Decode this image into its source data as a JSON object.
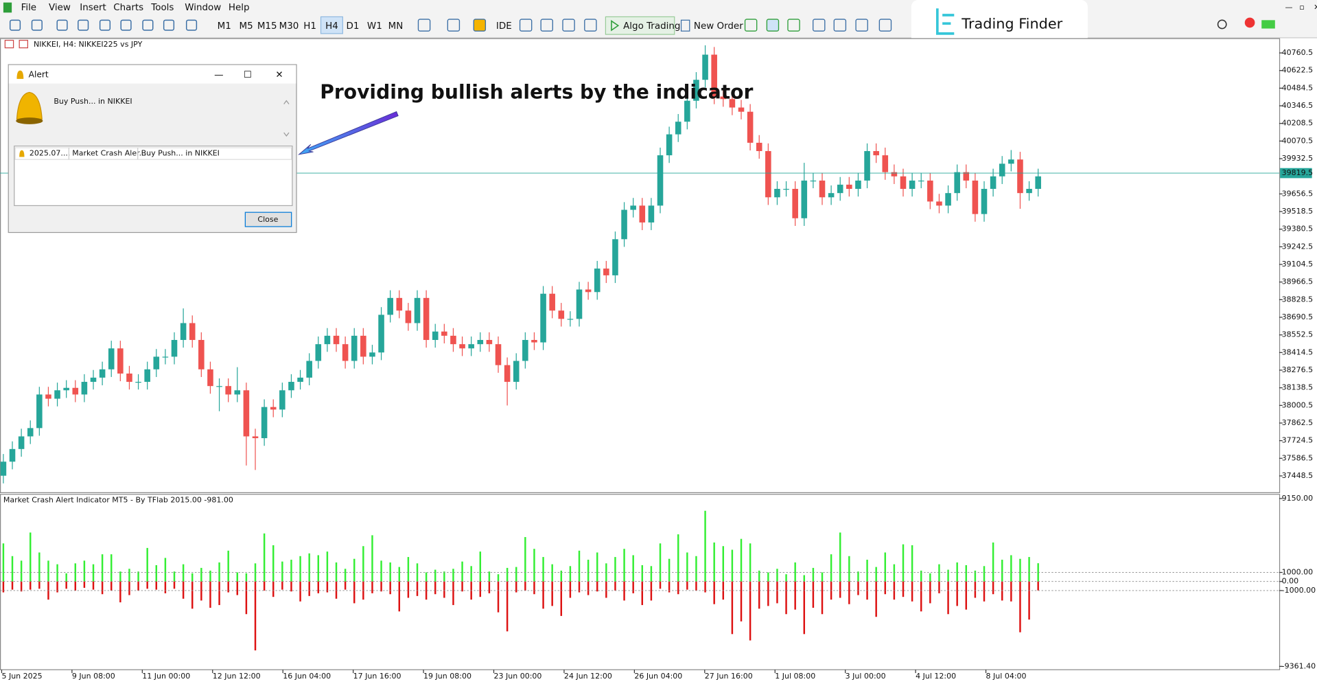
{
  "menu": [
    "File",
    "View",
    "Insert",
    "Charts",
    "Tools",
    "Window",
    "Help"
  ],
  "toolbar": {
    "timeframes": [
      "M1",
      "M5",
      "M15",
      "M30",
      "H1",
      "H4",
      "D1",
      "W1",
      "MN"
    ],
    "active": "H4",
    "ide": "IDE",
    "algo": "Algo Trading",
    "order": "New Order"
  },
  "brand": "Trading Finder",
  "annotation": "Providing bullish alerts by the indicator",
  "alert": {
    "title": "Alert",
    "message": "Buy Push... in NIKKEI",
    "row": [
      "2025.07....",
      "Market Crash Aler...",
      "Buy Push... in NIKKEI"
    ],
    "button": "Close"
  },
  "chart_data": [
    {
      "type": "candlestick",
      "title": "NIKKEI, H4: NIKKEI225 vs JPY",
      "up_color": "#26a69a",
      "down_color": "#ef5350",
      "open": [
        37450,
        37560,
        37659,
        37758,
        37823,
        38086,
        38053,
        38119,
        38138,
        38086,
        38185,
        38218,
        38283,
        38447,
        38250,
        38185,
        38185,
        38283,
        38382,
        38382,
        38513,
        38645,
        38513,
        38283,
        38152,
        38152,
        38086,
        38119,
        37758,
        37744,
        37988,
        37968,
        38119,
        38185,
        38218,
        38349,
        38480,
        38546,
        38480,
        38349,
        38546,
        38382,
        38415,
        38710,
        38842,
        38743,
        38645,
        38842,
        38513,
        38579,
        38546,
        38480,
        38447,
        38480,
        38513,
        38480,
        38316,
        38185,
        38349,
        38513,
        38494,
        38875,
        38743,
        38678,
        38678,
        38908,
        38888,
        39072,
        39019,
        39302,
        39532,
        39565,
        39433,
        39565,
        39959,
        40123,
        40222,
        40386,
        40550,
        40747,
        40419,
        40399,
        40333,
        40300,
        40057,
        39992,
        39630,
        39696,
        39696,
        39466,
        39761,
        39761,
        39630,
        39663,
        39729,
        39696,
        39761,
        39992,
        39959,
        39827,
        39794,
        39696,
        39761,
        39761,
        39597,
        39565,
        39663,
        39827,
        39761,
        39499,
        39696,
        39794,
        39893,
        39926,
        39663,
        39696
      ],
      "high": [
        37620,
        37719,
        37818,
        37883,
        38146,
        38146,
        38179,
        38198,
        38198,
        38245,
        38278,
        38343,
        38507,
        38507,
        38310,
        38245,
        38343,
        38442,
        38442,
        38573,
        38760,
        38705,
        38573,
        38343,
        38212,
        38212,
        38300,
        38179,
        37818,
        38048,
        38048,
        38179,
        38245,
        38278,
        38409,
        38540,
        38606,
        38606,
        38540,
        38606,
        38606,
        38475,
        38770,
        38902,
        38902,
        38803,
        38902,
        38902,
        38639,
        38639,
        38606,
        38540,
        38540,
        38573,
        38573,
        38540,
        38376,
        38409,
        38573,
        38573,
        38935,
        38935,
        38803,
        38738,
        38968,
        38968,
        39132,
        39132,
        39362,
        39592,
        39625,
        39625,
        39625,
        40019,
        40183,
        40282,
        40446,
        40610,
        40820,
        40807,
        40479,
        40459,
        40393,
        40360,
        40117,
        40052,
        39756,
        39756,
        39756,
        39900,
        39821,
        39821,
        39723,
        39789,
        39789,
        39821,
        40052,
        40052,
        40019,
        39887,
        39854,
        39821,
        39821,
        39821,
        39657,
        39723,
        39887,
        39887,
        39821,
        39756,
        39854,
        39953,
        40000,
        39986,
        39756,
        39854
      ],
      "low": [
        37390,
        37500,
        37599,
        37698,
        37763,
        37993,
        37993,
        38059,
        38026,
        38026,
        38125,
        38158,
        38223,
        38190,
        38125,
        38125,
        38125,
        38223,
        38322,
        38322,
        38453,
        38453,
        38223,
        38092,
        37955,
        38026,
        38026,
        37530,
        37495,
        37684,
        37908,
        37908,
        38059,
        38125,
        38158,
        38289,
        38420,
        38420,
        38289,
        38289,
        38322,
        38322,
        38355,
        38650,
        38683,
        38585,
        38585,
        38453,
        38453,
        38486,
        38420,
        38387,
        38387,
        38420,
        38420,
        38256,
        38000,
        38125,
        38289,
        38434,
        38434,
        38683,
        38618,
        38618,
        38618,
        38828,
        38828,
        38959,
        38959,
        39242,
        39472,
        39373,
        39373,
        39505,
        39899,
        40063,
        40162,
        40326,
        40490,
        40359,
        40339,
        40273,
        40240,
        39997,
        39932,
        39570,
        39570,
        39636,
        39406,
        39406,
        39701,
        39570,
        39570,
        39603,
        39636,
        39636,
        39701,
        39899,
        39767,
        39734,
        39636,
        39636,
        39701,
        39537,
        39505,
        39505,
        39603,
        39701,
        39439,
        39439,
        39636,
        39734,
        39833,
        39540,
        39603,
        39636
      ],
      "close": [
        37560,
        37659,
        37758,
        37823,
        38086,
        38053,
        38119,
        38138,
        38086,
        38185,
        38218,
        38283,
        38447,
        38250,
        38185,
        38185,
        38283,
        38382,
        38382,
        38513,
        38645,
        38513,
        38283,
        38152,
        38152,
        38086,
        38119,
        37758,
        37744,
        37988,
        37968,
        38119,
        38185,
        38218,
        38349,
        38480,
        38546,
        38480,
        38349,
        38546,
        38382,
        38415,
        38710,
        38842,
        38743,
        38645,
        38842,
        38513,
        38579,
        38546,
        38480,
        38447,
        38480,
        38513,
        38480,
        38316,
        38185,
        38349,
        38513,
        38494,
        38875,
        38743,
        38678,
        38678,
        38908,
        38888,
        39072,
        39019,
        39302,
        39532,
        39565,
        39433,
        39565,
        39959,
        40123,
        40222,
        40386,
        40550,
        40747,
        40419,
        40399,
        40333,
        40300,
        40057,
        39992,
        39630,
        39696,
        39696,
        39466,
        39761,
        39761,
        39630,
        39663,
        39729,
        39696,
        39761,
        39992,
        39959,
        39827,
        39794,
        39696,
        39761,
        39761,
        39597,
        39565,
        39663,
        39827,
        39761,
        39499,
        39696,
        39794,
        39893,
        39926,
        39663,
        39696,
        39794
      ],
      "ylim": [
        37324,
        40866
      ],
      "yticks": [
        40760.5,
        40622.5,
        40484.5,
        40346.5,
        40208.5,
        40070.5,
        39932.5,
        39656.5,
        39518.5,
        39380.5,
        39242.5,
        39104.5,
        38966.5,
        38828.5,
        38690.5,
        38552.5,
        38414.5,
        38276.5,
        38138.5,
        38000.5,
        37862.5,
        37724.5,
        37586.5,
        37448.5
      ],
      "current_price": 39819.5,
      "current_color": "#26a69a"
    },
    {
      "type": "bar",
      "title": "Market Crash Alert Indicator MT5 - By TFlab 2015.00 -981.00",
      "series": [
        {
          "color": "#33ee33",
          "values": [
            4200,
            2800,
            2300,
            5400,
            3200,
            2300,
            1900,
            900,
            2000,
            2300,
            1900,
            3000,
            3000,
            1100,
            1400,
            1100,
            3700,
            1800,
            2600,
            1100,
            1900,
            900,
            1500,
            1200,
            2100,
            3400,
            1000,
            900,
            2000,
            5300,
            4000,
            2200,
            2400,
            2800,
            3100,
            2900,
            3300,
            2100,
            1400,
            2500,
            3900,
            5100,
            2300,
            2100,
            1600,
            2700,
            2000,
            1000,
            1300,
            1100,
            1400,
            2200,
            1700,
            3300,
            1100,
            800,
            1500,
            1600,
            4900,
            3600,
            2700,
            1900,
            1200,
            1700,
            3400,
            2400,
            3200,
            2000,
            2700,
            3600,
            2900,
            1800,
            1700,
            4200,
            2500,
            5200,
            3200,
            2800,
            7800,
            4300,
            3900,
            3500,
            4700,
            4200,
            1200,
            1000,
            1400,
            800,
            2100,
            700,
            1500,
            1000,
            3000,
            5400,
            2800,
            1100,
            2400,
            1600,
            3200,
            1900,
            4100,
            4000,
            1200,
            900,
            1900,
            1300,
            2100,
            1800,
            1200,
            1700,
            4300,
            2400,
            2900,
            2500,
            2700,
            2015
          ]
        },
        {
          "color": "#dd1111",
          "values": [
            -1200,
            -900,
            -1100,
            -900,
            -800,
            -2000,
            -1200,
            -800,
            -1000,
            -700,
            -900,
            -1400,
            -1000,
            -2300,
            -1500,
            -1000,
            -800,
            -900,
            -1300,
            -800,
            -1900,
            -3000,
            -2100,
            -2900,
            -2600,
            -1200,
            -1500,
            -3600,
            -7600,
            -1000,
            -1700,
            -900,
            -1100,
            -2200,
            -1600,
            -1300,
            -1200,
            -1900,
            -900,
            -2400,
            -2000,
            -1300,
            -1100,
            -1400,
            -3300,
            -1800,
            -1600,
            -2000,
            -1400,
            -1800,
            -2600,
            -1100,
            -2000,
            -1700,
            -1300,
            -3400,
            -5500,
            -1200,
            -1000,
            -1400,
            -3000,
            -2700,
            -3800,
            -1800,
            -1200,
            -1500,
            -1100,
            -1800,
            -1000,
            -2100,
            -1300,
            -2600,
            -2100,
            -800,
            -1200,
            -1400,
            -900,
            -1000,
            -1200,
            -2500,
            -2000,
            -5800,
            -4400,
            -6500,
            -3000,
            -2700,
            -2400,
            -3600,
            -3100,
            -5800,
            -2900,
            -3600,
            -2000,
            -1800,
            -2500,
            -1500,
            -2000,
            -3900,
            -1400,
            -2000,
            -1700,
            -2200,
            -3300,
            -2400,
            -1300,
            -3600,
            -2700,
            -3100,
            -1800,
            -2200,
            -1400,
            -2100,
            -2200,
            -5600,
            -4200,
            -981
          ]
        }
      ],
      "ylim": [
        -9361.4,
        9150
      ],
      "yticks": [
        {
          "value": 9150,
          "label": "9150.00"
        },
        {
          "value": 1000,
          "label": "1000.00"
        },
        {
          "value": 0,
          "label": "0.00"
        },
        {
          "value": -1000,
          "label": "-1000.00"
        },
        {
          "value": -9361.4,
          "label": "-9361.40"
        }
      ],
      "x_labels": [
        "5 Jun 2025",
        "9 Jun 08:00",
        "11 Jun 00:00",
        "12 Jun 12:00",
        "16 Jun 04:00",
        "17 Jun 16:00",
        "19 Jun 08:00",
        "23 Jun 00:00",
        "24 Jun 12:00",
        "26 Jun 04:00",
        "27 Jun 16:00",
        "1 Jul 08:00",
        "3 Jul 00:00",
        "4 Jul 12:00",
        "8 Jul 04:00"
      ]
    }
  ]
}
